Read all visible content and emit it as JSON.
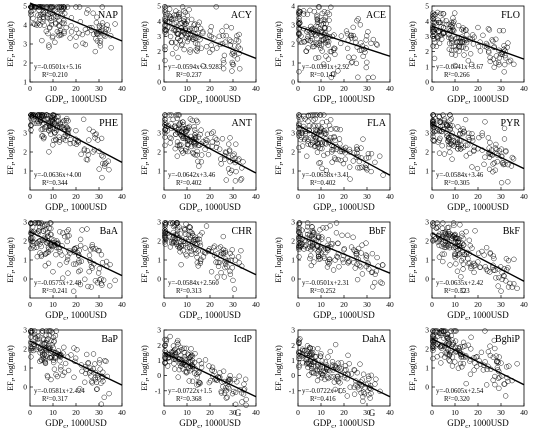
{
  "chart_data": [
    {
      "type": "scatter",
      "name": "NAP",
      "eq": "y=-0.0501x+5.16",
      "r2": "R²=0.210",
      "slope": -0.0501,
      "intercept": 5.16,
      "xlabel": "GDP",
      "xlabel_sub": "c",
      "xlabel_tail": ", 1000USD",
      "ylabel": "EF",
      "ylabel_sub": "r",
      "ylabel_tail": ", log(mg/t)",
      "xlim": [
        0,
        40
      ],
      "ylim": [
        1,
        5
      ],
      "xticks": [
        0,
        10,
        20,
        30,
        40
      ],
      "yticks": [
        1,
        2,
        3,
        4,
        5
      ],
      "cx": [
        8,
        28
      ],
      "cy": [
        4.3,
        2.7
      ],
      "sy": 0.7
    },
    {
      "type": "scatter",
      "name": "ACY",
      "eq": "y=-0.0594x+3.9283",
      "r2": "R²=0.237",
      "slope": -0.0594,
      "intercept": 3.9283,
      "xlabel": "GDP",
      "xlabel_sub": "c",
      "xlabel_tail": ", 1000USD",
      "ylabel": "EF",
      "ylabel_sub": "r",
      "ylabel_tail": ", log(mg/t)",
      "xlim": [
        0,
        40
      ],
      "ylim": [
        0,
        5
      ],
      "xticks": [
        0,
        10,
        20,
        30,
        40
      ],
      "yticks": [
        0,
        1,
        2,
        3,
        4,
        5
      ],
      "cx": [
        8,
        28
      ],
      "cy": [
        3.6,
        2.3
      ],
      "sy": 0.8
    },
    {
      "type": "scatter",
      "name": "ACE",
      "eq": "y=-0.0391x+2.92",
      "r2": "R²=0.142",
      "slope": -0.0391,
      "intercept": 2.92,
      "xlabel": "GDP",
      "xlabel_sub": "c",
      "xlabel_tail": ", 1000USD",
      "ylabel": "EF",
      "ylabel_sub": "r",
      "ylabel_tail": ", log(mg/t)",
      "xlim": [
        0,
        40
      ],
      "ylim": [
        0,
        4
      ],
      "xticks": [
        0,
        10,
        20,
        30,
        40
      ],
      "yticks": [
        0,
        1,
        2,
        3,
        4
      ],
      "cx": [
        8,
        28
      ],
      "cy": [
        2.7,
        1.8
      ],
      "sy": 0.7
    },
    {
      "type": "scatter",
      "name": "FLO",
      "eq": "y=-0.0541x+3.67",
      "r2": "R²=0.266",
      "slope": -0.0541,
      "intercept": 3.67,
      "xlabel": "GDP",
      "xlabel_sub": "c",
      "xlabel_tail": ", 1000USD",
      "ylabel": "EF",
      "ylabel_sub": "r",
      "ylabel_tail": ", log(mg/t)",
      "xlim": [
        0,
        40
      ],
      "ylim": [
        0,
        5
      ],
      "xticks": [
        0,
        10,
        20,
        30,
        40
      ],
      "yticks": [
        0,
        1,
        2,
        3,
        4,
        5
      ],
      "cx": [
        8,
        28
      ],
      "cy": [
        3.4,
        2.2
      ],
      "sy": 0.7
    },
    {
      "type": "scatter",
      "name": "PHE",
      "eq": "y=-0.0636x+4.00",
      "r2": "R²=0.344",
      "slope": -0.0636,
      "intercept": 4.0,
      "xlabel": "GDP",
      "xlabel_sub": "c",
      "xlabel_tail": ", 1000USD",
      "ylabel": "EF",
      "ylabel_sub": "r",
      "ylabel_tail": ", log(mg/t)",
      "xlim": [
        0,
        40
      ],
      "ylim": [
        0,
        4
      ],
      "xticks": [
        0,
        10,
        20,
        30,
        40
      ],
      "yticks": [
        1,
        2,
        3
      ],
      "cx": [
        8,
        28
      ],
      "cy": [
        3.5,
        2.2
      ],
      "sy": 0.5
    },
    {
      "type": "scatter",
      "name": "ANT",
      "eq": "y=-0.0642x+3.46",
      "r2": "R²=0.402",
      "slope": -0.0642,
      "intercept": 3.46,
      "xlabel": "GDP",
      "xlabel_sub": "c",
      "xlabel_tail": ", 1000USD",
      "ylabel": "EF",
      "ylabel_sub": "r",
      "ylabel_tail": ", log(mg/t)",
      "xlim": [
        0,
        40
      ],
      "ylim": [
        0,
        4
      ],
      "xticks": [
        0,
        10,
        20,
        30,
        40
      ],
      "yticks": [
        1,
        2,
        3
      ],
      "cx": [
        8,
        28
      ],
      "cy": [
        3.0,
        1.7
      ],
      "sy": 0.55
    },
    {
      "type": "scatter",
      "name": "FLA",
      "eq": "y=-0.0658x+3.41",
      "r2": "R²=0.402",
      "slope": -0.0658,
      "intercept": 3.41,
      "xlabel": "GDP",
      "xlabel_sub": "c",
      "xlabel_tail": ", 1000USD",
      "ylabel": "EF",
      "ylabel_sub": "r",
      "ylabel_tail": ", log(mg/t)",
      "xlim": [
        0,
        40
      ],
      "ylim": [
        0,
        4
      ],
      "xticks": [
        0,
        10,
        20,
        30,
        40
      ],
      "yticks": [
        1,
        2,
        3
      ],
      "cx": [
        8,
        28
      ],
      "cy": [
        2.9,
        1.6
      ],
      "sy": 0.55
    },
    {
      "type": "scatter",
      "name": "PYR",
      "eq": "y=-0.0584x+3.46",
      "r2": "R²=0.305",
      "slope": -0.0584,
      "intercept": 3.46,
      "xlabel": "GDP",
      "xlabel_sub": "c",
      "xlabel_tail": ", 1000USD",
      "ylabel": "EF",
      "ylabel_sub": "r",
      "ylabel_tail": ", log(mg/t)",
      "xlim": [
        0,
        40
      ],
      "ylim": [
        0,
        4
      ],
      "xticks": [
        0,
        10,
        20,
        30,
        40
      ],
      "yticks": [
        1,
        2,
        3
      ],
      "cx": [
        8,
        28
      ],
      "cy": [
        3.0,
        1.8
      ],
      "sy": 0.55
    },
    {
      "type": "scatter",
      "name": "BaA",
      "eq": "y=-0.0575x+2.48",
      "r2": "R²=0.241",
      "slope": -0.0575,
      "intercept": 2.48,
      "xlabel": "GDP",
      "xlabel_sub": "c",
      "xlabel_tail": ", 1000USD",
      "ylabel": "EF",
      "ylabel_sub": "r",
      "ylabel_tail": ", log(mg/t)",
      "xlim": [
        0,
        40
      ],
      "ylim": [
        -1,
        3
      ],
      "xticks": [
        0,
        10,
        20,
        30,
        40
      ],
      "yticks": [
        0,
        1,
        2,
        3
      ],
      "cx": [
        8,
        28
      ],
      "cy": [
        2.0,
        0.8
      ],
      "sy": 0.7
    },
    {
      "type": "scatter",
      "name": "CHR",
      "eq": "y=-0.0584x+2.560",
      "r2": "R²=0.313",
      "slope": -0.0584,
      "intercept": 2.56,
      "xlabel": "GDP",
      "xlabel_sub": "c",
      "xlabel_tail": ", 1000USD",
      "ylabel": "EF",
      "ylabel_sub": "r",
      "ylabel_tail": ", log(mg/t)",
      "xlim": [
        0,
        40
      ],
      "ylim": [
        -1,
        3
      ],
      "xticks": [
        0,
        10,
        20,
        30,
        40
      ],
      "yticks": [
        0,
        1,
        2,
        3
      ],
      "cx": [
        8,
        28
      ],
      "cy": [
        2.1,
        0.9
      ],
      "sy": 0.55
    },
    {
      "type": "scatter",
      "name": "BbF",
      "eq": "y=-0.0501x+2.31",
      "r2": "R²=0.252",
      "slope": -0.0501,
      "intercept": 2.31,
      "xlabel": "GDP",
      "xlabel_sub": "c",
      "xlabel_tail": ", 1000USD",
      "ylabel": "EF",
      "ylabel_sub": "r",
      "ylabel_tail": ", log(mg/t)",
      "xlim": [
        0,
        40
      ],
      "ylim": [
        -1,
        3
      ],
      "xticks": [
        0,
        10,
        20,
        30,
        40
      ],
      "yticks": [
        0,
        1,
        2,
        3
      ],
      "cx": [
        8,
        28
      ],
      "cy": [
        1.9,
        0.9
      ],
      "sy": 0.55
    },
    {
      "type": "scatter",
      "name": "BkF",
      "eq": "y=-0.0635x+2.42",
      "r2": "R²=0.323",
      "slope": -0.0635,
      "intercept": 2.42,
      "xlabel": "GDP",
      "xlabel_sub": "c",
      "xlabel_tail": ", 1000USD",
      "ylabel": "EF",
      "ylabel_sub": "r",
      "ylabel_tail": ", log(mg/t)",
      "xlim": [
        0,
        40
      ],
      "ylim": [
        -1,
        3
      ],
      "xticks": [
        0,
        10,
        20,
        30,
        40
      ],
      "yticks": [
        0,
        1,
        2,
        3
      ],
      "cx": [
        8,
        28
      ],
      "cy": [
        1.9,
        0.7
      ],
      "sy": 0.55
    },
    {
      "type": "scatter",
      "name": "BaP",
      "eq": "y=-0.0581x+2.424",
      "r2": "R²=0.317",
      "slope": -0.0581,
      "intercept": 2.424,
      "xlabel": "GDP",
      "xlabel_sub": "c",
      "xlabel_tail": ", 1000USD",
      "ylabel": "EF",
      "ylabel_sub": "r",
      "ylabel_tail": ", log(mg/t)",
      "xlim": [
        0,
        40
      ],
      "ylim": [
        -1,
        3
      ],
      "xticks": [
        0,
        10,
        20,
        30,
        40
      ],
      "yticks": [
        0,
        1,
        2,
        3
      ],
      "cx": [
        8,
        28
      ],
      "cy": [
        2.0,
        0.8
      ],
      "sy": 0.55
    },
    {
      "type": "scatter",
      "name": "IcdP",
      "eq": "y=-0.0722x+1.5",
      "r2": "R²=0.368",
      "slope": -0.0722,
      "intercept": 1.5,
      "xlabel": "GDP",
      "xlabel_sub": "c",
      "xlabel_tail": ", 1000USD",
      "ylabel": "EF",
      "ylabel_sub": "r",
      "ylabel_tail": ", log(mg/t)",
      "xlim": [
        0,
        40
      ],
      "ylim": [
        -2,
        3
      ],
      "xticks": [
        0,
        10,
        20,
        30,
        40
      ],
      "yticks": [
        -1,
        0,
        1,
        2,
        3
      ],
      "cx": [
        8,
        28
      ],
      "cy": [
        1.6,
        0.3
      ],
      "sy": 0.6
    },
    {
      "type": "scatter",
      "name": "DahA",
      "eq": "y=-0.0722x+1.5",
      "r2": "R²=0.416",
      "slope": -0.0722,
      "intercept": 1.5,
      "xlabel": "GDP",
      "xlabel_sub": "c",
      "xlabel_tail": ", 1000USD",
      "ylabel": "EF",
      "ylabel_sub": "r",
      "ylabel_tail": ", log(mg/t)",
      "xlim": [
        0,
        40
      ],
      "ylim": [
        -2,
        3
      ],
      "xticks": [
        0,
        10,
        20,
        30,
        40
      ],
      "yticks": [
        -1,
        0,
        1,
        2,
        3
      ],
      "cx": [
        8,
        28
      ],
      "cy": [
        1.2,
        -0.1
      ],
      "sy": 0.55
    },
    {
      "type": "scatter",
      "name": "BghiP",
      "eq": "y=-0.0605x+2.54",
      "r2": "R²=0.320",
      "slope": -0.0605,
      "intercept": 2.54,
      "xlabel": "GDP",
      "xlabel_sub": "c",
      "xlabel_tail": ", 1000USD",
      "ylabel": "EF",
      "ylabel_sub": "r",
      "ylabel_tail": ", log(mg/t)",
      "xlim": [
        0,
        40
      ],
      "ylim": [
        -1,
        3
      ],
      "xticks": [
        0,
        10,
        20,
        30,
        40
      ],
      "yticks": [
        0,
        1,
        2,
        3
      ],
      "cx": [
        8,
        28
      ],
      "cy": [
        2.1,
        0.9
      ],
      "sy": 0.55
    }
  ],
  "marks": {
    "g_label": "G"
  }
}
